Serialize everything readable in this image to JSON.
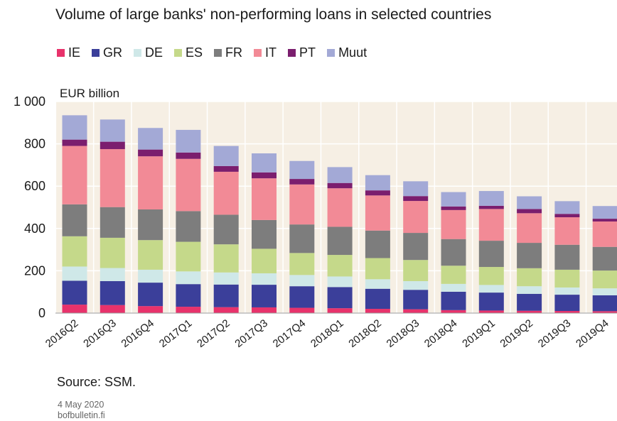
{
  "chart_data": {
    "type": "bar",
    "stacked": true,
    "title": "Volume of large banks' non-performing loans in selected countries",
    "ylabel": "EUR billion",
    "xlabel": "",
    "ylim": [
      0,
      1000
    ],
    "yticks": [
      0,
      200,
      400,
      600,
      800,
      1000
    ],
    "ytick_labels": [
      "0",
      "200",
      "400",
      "600",
      "800",
      "1 000"
    ],
    "grid": true,
    "legend_position": "top",
    "categories": [
      "2016Q2",
      "2016Q3",
      "2016Q4",
      "2017Q1",
      "2017Q2",
      "2017Q3",
      "2017Q4",
      "2018Q1",
      "2018Q2",
      "2018Q3",
      "2018Q4",
      "2019Q1",
      "2019Q2",
      "2019Q3",
      "2019Q4"
    ],
    "series": [
      {
        "name": "IE",
        "color": "#e8326b",
        "values": [
          40,
          38,
          33,
          30,
          28,
          27,
          25,
          23,
          20,
          18,
          14,
          12,
          11,
          10,
          9
        ]
      },
      {
        "name": "GR",
        "color": "#3b3f9a",
        "values": [
          113,
          113,
          111,
          107,
          107,
          107,
          102,
          100,
          95,
          92,
          87,
          85,
          80,
          77,
          75
        ]
      },
      {
        "name": "DE",
        "color": "#cfe8e8",
        "values": [
          67,
          62,
          61,
          60,
          57,
          54,
          53,
          50,
          45,
          41,
          37,
          36,
          36,
          34,
          33
        ]
      },
      {
        "name": "ES",
        "color": "#c5d98a",
        "values": [
          143,
          143,
          140,
          140,
          133,
          116,
          104,
          102,
          100,
          100,
          86,
          85,
          85,
          84,
          84
        ]
      },
      {
        "name": "FR",
        "color": "#7d7d7d",
        "values": [
          151,
          145,
          145,
          145,
          140,
          136,
          135,
          133,
          130,
          128,
          126,
          124,
          120,
          118,
          112
        ]
      },
      {
        "name": "IT",
        "color": "#f28a96",
        "values": [
          276,
          274,
          251,
          247,
          203,
          197,
          189,
          182,
          166,
          151,
          137,
          150,
          140,
          130,
          120
        ]
      },
      {
        "name": "PT",
        "color": "#7b1e6e",
        "values": [
          30,
          35,
          32,
          30,
          27,
          28,
          26,
          25,
          24,
          23,
          17,
          15,
          20,
          16,
          13
        ]
      },
      {
        "name": "Muut",
        "color": "#a3a9d6",
        "values": [
          115,
          105,
          102,
          107,
          95,
          90,
          85,
          75,
          72,
          70,
          68,
          70,
          60,
          60,
          60
        ]
      }
    ],
    "source": "Source: SSM.",
    "date": "4 May 2020",
    "site": "bofbulletin.fi"
  }
}
